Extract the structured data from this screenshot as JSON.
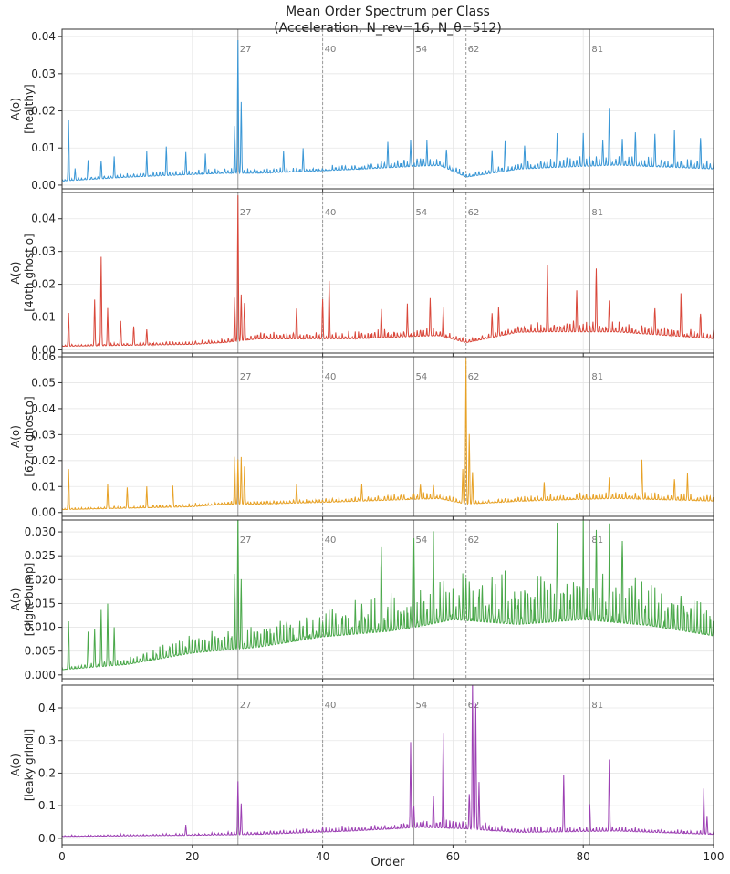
{
  "chart_data": {
    "type": "line",
    "title": "Mean Order Spectrum per Class\n(Acceleration, N_rev=16, N_θ=512)",
    "xlabel": "Order",
    "xlim": [
      0,
      100
    ],
    "x_ticks": [
      0,
      20,
      40,
      60,
      80,
      100
    ],
    "grid": true,
    "reference_lines": [
      {
        "order": 27,
        "label": "27",
        "style": "solid"
      },
      {
        "order": 40,
        "label": "40",
        "style": "dashed"
      },
      {
        "order": 54,
        "label": "54",
        "style": "solid"
      },
      {
        "order": 62,
        "label": "62",
        "style": "dashed"
      },
      {
        "order": 81,
        "label": "81",
        "style": "solid"
      }
    ],
    "panels": [
      {
        "ylabel": "A(o)\n[healthy]",
        "color": "#3a97d6",
        "ylim": [
          -0.001,
          0.042
        ],
        "y_ticks": [
          0.0,
          0.01,
          0.02,
          0.03,
          0.04
        ],
        "y_tick_labels": [
          "0.00",
          "0.01",
          "0.02",
          "0.03",
          "0.04"
        ],
        "base": [
          [
            0,
            0.001
          ],
          [
            10,
            0.002
          ],
          [
            25,
            0.003
          ],
          [
            30,
            0.003
          ],
          [
            45,
            0.004
          ],
          [
            58,
            0.005
          ],
          [
            62,
            0.002
          ],
          [
            70,
            0.004
          ],
          [
            85,
            0.005
          ],
          [
            100,
            0.004
          ]
        ],
        "noise": [
          [
            0,
            0.0005
          ],
          [
            20,
            0.001
          ],
          [
            40,
            0.001
          ],
          [
            55,
            0.0018
          ],
          [
            63,
            0.0008
          ],
          [
            75,
            0.002
          ],
          [
            100,
            0.0018
          ]
        ],
        "peaks": [
          [
            1,
            0.017
          ],
          [
            2,
            0.004
          ],
          [
            4,
            0.006
          ],
          [
            6,
            0.006
          ],
          [
            8,
            0.007
          ],
          [
            13,
            0.008
          ],
          [
            16,
            0.01
          ],
          [
            19,
            0.008
          ],
          [
            22,
            0.007
          ],
          [
            26.5,
            0.015
          ],
          [
            27,
            0.038
          ],
          [
            27.5,
            0.022
          ],
          [
            34,
            0.008
          ],
          [
            37,
            0.009
          ],
          [
            50,
            0.01
          ],
          [
            53.5,
            0.011
          ],
          [
            56,
            0.01
          ],
          [
            59,
            0.009
          ],
          [
            66,
            0.008
          ],
          [
            68,
            0.011
          ],
          [
            71,
            0.01
          ],
          [
            76,
            0.011
          ],
          [
            80,
            0.011
          ],
          [
            83,
            0.011
          ],
          [
            84,
            0.019
          ],
          [
            86,
            0.012
          ],
          [
            88,
            0.013
          ],
          [
            91,
            0.013
          ],
          [
            94,
            0.012
          ],
          [
            98,
            0.012
          ]
        ]
      },
      {
        "ylabel": "A(o)\n[40th ghost o]",
        "color": "#d9473a",
        "ylim": [
          -0.001,
          0.048
        ],
        "y_ticks": [
          0.0,
          0.01,
          0.02,
          0.03,
          0.04
        ],
        "y_tick_labels": [
          "0.00",
          "0.01",
          "0.02",
          "0.03",
          "0.04"
        ],
        "base": [
          [
            0,
            0.001
          ],
          [
            20,
            0.0015
          ],
          [
            25,
            0.002
          ],
          [
            30,
            0.003
          ],
          [
            45,
            0.003
          ],
          [
            58,
            0.004
          ],
          [
            62,
            0.002
          ],
          [
            70,
            0.005
          ],
          [
            85,
            0.005
          ],
          [
            100,
            0.003
          ]
        ],
        "noise": [
          [
            0,
            0.0004
          ],
          [
            20,
            0.0008
          ],
          [
            30,
            0.0015
          ],
          [
            55,
            0.002
          ],
          [
            63,
            0.0008
          ],
          [
            75,
            0.0025
          ],
          [
            100,
            0.002
          ]
        ],
        "peaks": [
          [
            1,
            0.011
          ],
          [
            5,
            0.015
          ],
          [
            6,
            0.028
          ],
          [
            7,
            0.012
          ],
          [
            9,
            0.008
          ],
          [
            11,
            0.007
          ],
          [
            13,
            0.006
          ],
          [
            26.5,
            0.015
          ],
          [
            27,
            0.046
          ],
          [
            27.5,
            0.016
          ],
          [
            28,
            0.014
          ],
          [
            36,
            0.012
          ],
          [
            40,
            0.014
          ],
          [
            41,
            0.02
          ],
          [
            49,
            0.012
          ],
          [
            53,
            0.011
          ],
          [
            56.5,
            0.014
          ],
          [
            58.5,
            0.011
          ],
          [
            66,
            0.01
          ],
          [
            67,
            0.012
          ],
          [
            74.5,
            0.024
          ],
          [
            79,
            0.016
          ],
          [
            82,
            0.024
          ],
          [
            84,
            0.014
          ],
          [
            91,
            0.012
          ],
          [
            95,
            0.014
          ],
          [
            98,
            0.01
          ]
        ]
      },
      {
        "ylabel": "A(o)\n[62nd ghost o]",
        "color": "#e7a125",
        "ylim": [
          -0.0015,
          0.06
        ],
        "y_ticks": [
          0.0,
          0.01,
          0.02,
          0.03,
          0.04,
          0.05,
          0.06
        ],
        "y_tick_labels": [
          "0.00",
          "0.01",
          "0.02",
          "0.03",
          "0.04",
          "0.05",
          "0.06"
        ],
        "base": [
          [
            0,
            0.001
          ],
          [
            20,
            0.002
          ],
          [
            25,
            0.003
          ],
          [
            30,
            0.003
          ],
          [
            45,
            0.004
          ],
          [
            58,
            0.005
          ],
          [
            62,
            0.003
          ],
          [
            70,
            0.004
          ],
          [
            85,
            0.005
          ],
          [
            100,
            0.004
          ]
        ],
        "noise": [
          [
            0,
            0.0005
          ],
          [
            20,
            0.001
          ],
          [
            40,
            0.0012
          ],
          [
            55,
            0.002
          ],
          [
            63,
            0.001
          ],
          [
            75,
            0.002
          ],
          [
            100,
            0.002
          ]
        ],
        "peaks": [
          [
            1,
            0.016
          ],
          [
            7,
            0.01
          ],
          [
            10,
            0.009
          ],
          [
            13,
            0.009
          ],
          [
            17,
            0.009
          ],
          [
            26.5,
            0.021
          ],
          [
            27,
            0.02
          ],
          [
            27.5,
            0.02
          ],
          [
            28,
            0.016
          ],
          [
            36,
            0.009
          ],
          [
            46,
            0.009
          ],
          [
            55,
            0.01
          ],
          [
            57,
            0.01
          ],
          [
            61.5,
            0.015
          ],
          [
            62,
            0.058
          ],
          [
            62.5,
            0.03
          ],
          [
            63,
            0.015
          ],
          [
            74,
            0.01
          ],
          [
            84,
            0.011
          ],
          [
            89,
            0.018
          ],
          [
            94,
            0.012
          ],
          [
            96,
            0.012
          ]
        ]
      },
      {
        "ylabel": "A(o)\n[slight bump]",
        "color": "#4aa84a",
        "ylim": [
          -0.0008,
          0.0325
        ],
        "y_ticks": [
          0.0,
          0.005,
          0.01,
          0.015,
          0.02,
          0.025,
          0.03
        ],
        "y_tick_labels": [
          "0.000",
          "0.005",
          "0.010",
          "0.015",
          "0.020",
          "0.025",
          "0.030"
        ],
        "base": [
          [
            0,
            0.001
          ],
          [
            10,
            0.002
          ],
          [
            20,
            0.004
          ],
          [
            30,
            0.005
          ],
          [
            40,
            0.007
          ],
          [
            50,
            0.008
          ],
          [
            60,
            0.01
          ],
          [
            70,
            0.009
          ],
          [
            80,
            0.01
          ],
          [
            90,
            0.009
          ],
          [
            100,
            0.007
          ]
        ],
        "noise": [
          [
            0,
            0.0005
          ],
          [
            10,
            0.001
          ],
          [
            20,
            0.003
          ],
          [
            30,
            0.004
          ],
          [
            40,
            0.005
          ],
          [
            55,
            0.006
          ],
          [
            60,
            0.008
          ],
          [
            80,
            0.008
          ],
          [
            100,
            0.006
          ]
        ],
        "peaks": [
          [
            1,
            0.011
          ],
          [
            4,
            0.008
          ],
          [
            5,
            0.009
          ],
          [
            6,
            0.013
          ],
          [
            7,
            0.014
          ],
          [
            8,
            0.009
          ],
          [
            26.5,
            0.017
          ],
          [
            27,
            0.032
          ],
          [
            27.5,
            0.016
          ],
          [
            49,
            0.023
          ],
          [
            54,
            0.023
          ],
          [
            57,
            0.023
          ],
          [
            76,
            0.023
          ],
          [
            80,
            0.021
          ],
          [
            82,
            0.026
          ],
          [
            84,
            0.021
          ],
          [
            86,
            0.023
          ]
        ]
      },
      {
        "ylabel": "A(o)\n[leaky grindi]",
        "color": "#9c3fb3",
        "ylim": [
          -0.02,
          0.47
        ],
        "y_ticks": [
          0.0,
          0.1,
          0.2,
          0.3,
          0.4
        ],
        "y_tick_labels": [
          "0.0",
          "0.1",
          "0.2",
          "0.3",
          "0.4"
        ],
        "base": [
          [
            0,
            0.005
          ],
          [
            20,
            0.008
          ],
          [
            30,
            0.01
          ],
          [
            45,
            0.02
          ],
          [
            55,
            0.03
          ],
          [
            62,
            0.025
          ],
          [
            70,
            0.015
          ],
          [
            85,
            0.02
          ],
          [
            100,
            0.01
          ]
        ],
        "noise": [
          [
            0,
            0.003
          ],
          [
            20,
            0.005
          ],
          [
            30,
            0.008
          ],
          [
            50,
            0.015
          ],
          [
            60,
            0.02
          ],
          [
            75,
            0.012
          ],
          [
            100,
            0.008
          ]
        ],
        "peaks": [
          [
            19,
            0.035
          ],
          [
            27,
            0.17
          ],
          [
            27.5,
            0.1
          ],
          [
            53.5,
            0.27
          ],
          [
            54,
            0.09
          ],
          [
            57,
            0.12
          ],
          [
            58.5,
            0.3
          ],
          [
            62.5,
            0.13
          ],
          [
            63,
            0.46
          ],
          [
            63.5,
            0.4
          ],
          [
            64,
            0.15
          ],
          [
            77,
            0.18
          ],
          [
            81,
            0.09
          ],
          [
            84,
            0.23
          ],
          [
            98.5,
            0.14
          ],
          [
            99,
            0.06
          ]
        ]
      }
    ]
  }
}
